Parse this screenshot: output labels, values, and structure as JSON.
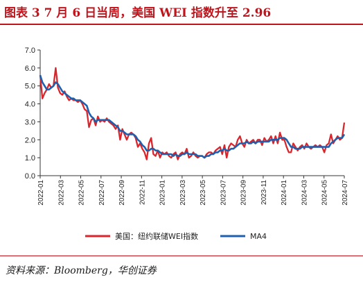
{
  "header": {
    "title": "图表 3   7 月 6 日当周，美国 WEI 指数升至 2.96"
  },
  "source": {
    "text": "资料来源：Bloomberg，华创证券"
  },
  "colors": {
    "series_weekly": "#d9252c",
    "series_ma4": "#1f5fae",
    "accent": "#c0141c"
  },
  "chart_data": {
    "type": "line",
    "ylim": [
      0.0,
      7.0
    ],
    "yticks": [
      "0.0",
      "1.0",
      "2.0",
      "3.0",
      "4.0",
      "5.0",
      "6.0",
      "7.0"
    ],
    "xticks": [
      "2022-01",
      "2022-03",
      "2022-05",
      "2022-07",
      "2022-09",
      "2022-11",
      "2023-01",
      "2023-03",
      "2023-05",
      "2023-07",
      "2023-09",
      "2023-11",
      "2024-01",
      "2024-03",
      "2024-05",
      "2024-07"
    ],
    "legend": {
      "position": "bottom"
    },
    "series": [
      {
        "name": "美国：纽约联储WEI指数",
        "color": "#d9252c",
        "values": [
          5.6,
          4.3,
          4.6,
          4.8,
          5.1,
          4.9,
          5.0,
          6.0,
          4.9,
          4.6,
          4.5,
          4.7,
          4.4,
          4.2,
          4.3,
          4.2,
          4.2,
          4.1,
          4.2,
          4.0,
          3.7,
          3.6,
          2.7,
          3.1,
          3.2,
          2.8,
          3.3,
          3.0,
          3.1,
          3.0,
          3.2,
          3.0,
          2.9,
          2.8,
          2.6,
          2.8,
          2.0,
          2.6,
          2.3,
          2.0,
          2.3,
          2.4,
          2.3,
          2.1,
          1.6,
          1.8,
          1.5,
          1.3,
          0.9,
          1.8,
          2.1,
          1.2,
          1.1,
          1.4,
          1.0,
          1.3,
          1.2,
          1.3,
          1.1,
          1.0,
          1.2,
          1.3,
          0.9,
          1.2,
          1.3,
          1.2,
          1.5,
          1.0,
          1.1,
          1.3,
          1.1,
          1.0,
          1.1,
          1.1,
          1.0,
          1.2,
          1.3,
          1.3,
          1.2,
          1.4,
          1.5,
          1.6,
          1.2,
          1.7,
          1.0,
          1.6,
          1.8,
          1.7,
          1.6,
          2.0,
          2.2,
          1.8,
          1.6,
          2.0,
          1.8,
          1.9,
          2.0,
          1.8,
          2.0,
          2.0,
          1.7,
          2.1,
          1.9,
          2.0,
          2.2,
          1.8,
          2.2,
          1.8,
          2.4,
          2.0,
          2.0,
          1.6,
          1.3,
          1.3,
          1.8,
          1.6,
          1.4,
          1.6,
          1.7,
          1.5,
          1.8,
          1.6,
          1.5,
          1.6,
          1.7,
          1.6,
          1.7,
          1.6,
          1.3,
          1.7,
          1.8,
          2.3,
          1.8,
          2.0,
          2.2,
          2.0,
          2.1,
          2.96
        ]
      },
      {
        "name": "MA4",
        "color": "#1f5fae",
        "values": [
          5.6,
          5.2,
          5.0,
          4.8,
          4.8,
          4.9,
          5.0,
          5.2,
          5.1,
          4.9,
          4.7,
          4.6,
          4.5,
          4.4,
          4.3,
          4.3,
          4.2,
          4.2,
          4.2,
          4.1,
          4.0,
          3.9,
          3.5,
          3.3,
          3.2,
          3.0,
          3.1,
          3.1,
          3.1,
          3.1,
          3.1,
          3.1,
          3.0,
          2.9,
          2.8,
          2.7,
          2.5,
          2.5,
          2.4,
          2.3,
          2.3,
          2.3,
          2.3,
          2.2,
          2.0,
          1.9,
          1.7,
          1.6,
          1.4,
          1.4,
          1.5,
          1.5,
          1.4,
          1.4,
          1.3,
          1.2,
          1.2,
          1.2,
          1.2,
          1.2,
          1.1,
          1.2,
          1.1,
          1.1,
          1.2,
          1.2,
          1.3,
          1.2,
          1.2,
          1.2,
          1.2,
          1.1,
          1.1,
          1.1,
          1.0,
          1.1,
          1.1,
          1.2,
          1.2,
          1.3,
          1.3,
          1.4,
          1.4,
          1.5,
          1.4,
          1.4,
          1.5,
          1.5,
          1.6,
          1.7,
          1.8,
          1.8,
          1.8,
          1.9,
          1.8,
          1.8,
          1.9,
          1.8,
          1.9,
          1.9,
          1.9,
          1.9,
          1.9,
          1.9,
          2.0,
          2.0,
          2.0,
          2.0,
          2.1,
          2.1,
          2.1,
          2.0,
          1.8,
          1.6,
          1.6,
          1.5,
          1.5,
          1.5,
          1.6,
          1.6,
          1.6,
          1.6,
          1.6,
          1.6,
          1.6,
          1.6,
          1.6,
          1.6,
          1.6,
          1.6,
          1.6,
          1.8,
          1.9,
          2.0,
          2.1,
          2.1,
          2.1,
          2.3
        ]
      }
    ]
  }
}
